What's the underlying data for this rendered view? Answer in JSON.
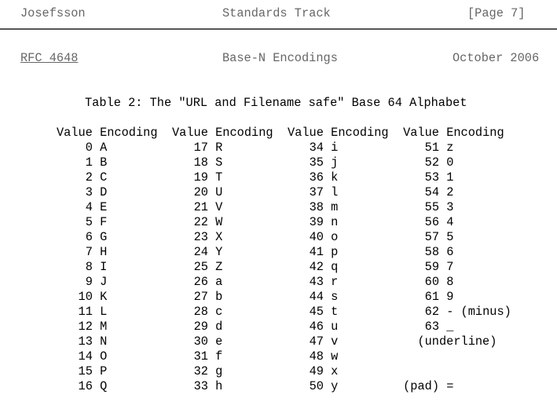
{
  "header": {
    "author": "Josefsson",
    "category": "Standards Track",
    "page": "[Page 7]"
  },
  "subheader": {
    "rfc_link": "RFC 4648",
    "title": "Base-N Encodings",
    "date": "October 2006"
  },
  "table": {
    "caption": "Table 2: The \"URL and Filename safe\" Base 64 Alphabet",
    "columns": [
      {
        "value": "Value",
        "encoding": "Encoding"
      },
      {
        "value": "Value",
        "encoding": "Encoding"
      },
      {
        "value": "Value",
        "encoding": "Encoding"
      },
      {
        "value": "Value",
        "encoding": "Encoding"
      }
    ],
    "rows": [
      [
        [
          "0",
          "A"
        ],
        [
          "17",
          "R"
        ],
        [
          "34",
          "i"
        ],
        [
          "51",
          "z"
        ]
      ],
      [
        [
          "1",
          "B"
        ],
        [
          "18",
          "S"
        ],
        [
          "35",
          "j"
        ],
        [
          "52",
          "0"
        ]
      ],
      [
        [
          "2",
          "C"
        ],
        [
          "19",
          "T"
        ],
        [
          "36",
          "k"
        ],
        [
          "53",
          "1"
        ]
      ],
      [
        [
          "3",
          "D"
        ],
        [
          "20",
          "U"
        ],
        [
          "37",
          "l"
        ],
        [
          "54",
          "2"
        ]
      ],
      [
        [
          "4",
          "E"
        ],
        [
          "21",
          "V"
        ],
        [
          "38",
          "m"
        ],
        [
          "55",
          "3"
        ]
      ],
      [
        [
          "5",
          "F"
        ],
        [
          "22",
          "W"
        ],
        [
          "39",
          "n"
        ],
        [
          "56",
          "4"
        ]
      ],
      [
        [
          "6",
          "G"
        ],
        [
          "23",
          "X"
        ],
        [
          "40",
          "o"
        ],
        [
          "57",
          "5"
        ]
      ],
      [
        [
          "7",
          "H"
        ],
        [
          "24",
          "Y"
        ],
        [
          "41",
          "p"
        ],
        [
          "58",
          "6"
        ]
      ],
      [
        [
          "8",
          "I"
        ],
        [
          "25",
          "Z"
        ],
        [
          "42",
          "q"
        ],
        [
          "59",
          "7"
        ]
      ],
      [
        [
          "9",
          "J"
        ],
        [
          "26",
          "a"
        ],
        [
          "43",
          "r"
        ],
        [
          "60",
          "8"
        ]
      ],
      [
        [
          "10",
          "K"
        ],
        [
          "27",
          "b"
        ],
        [
          "44",
          "s"
        ],
        [
          "61",
          "9"
        ]
      ],
      [
        [
          "11",
          "L"
        ],
        [
          "28",
          "c"
        ],
        [
          "45",
          "t"
        ],
        [
          "62",
          "- (minus)"
        ]
      ],
      [
        [
          "12",
          "M"
        ],
        [
          "29",
          "d"
        ],
        [
          "46",
          "u"
        ],
        [
          "63",
          "_"
        ]
      ],
      [
        [
          "13",
          "N"
        ],
        [
          "30",
          "e"
        ],
        [
          "47",
          "v"
        ],
        [
          "",
          ""
        ]
      ],
      [
        [
          "14",
          "O"
        ],
        [
          "31",
          "f"
        ],
        [
          "48",
          "w"
        ],
        [
          "",
          ""
        ]
      ],
      [
        [
          "15",
          "P"
        ],
        [
          "32",
          "g"
        ],
        [
          "49",
          "x"
        ],
        [
          "",
          ""
        ]
      ],
      [
        [
          "16",
          "Q"
        ],
        [
          "33",
          "h"
        ],
        [
          "50",
          "y"
        ],
        [
          "(pad)",
          "="
        ]
      ]
    ],
    "continuation_note": "(underline)"
  }
}
